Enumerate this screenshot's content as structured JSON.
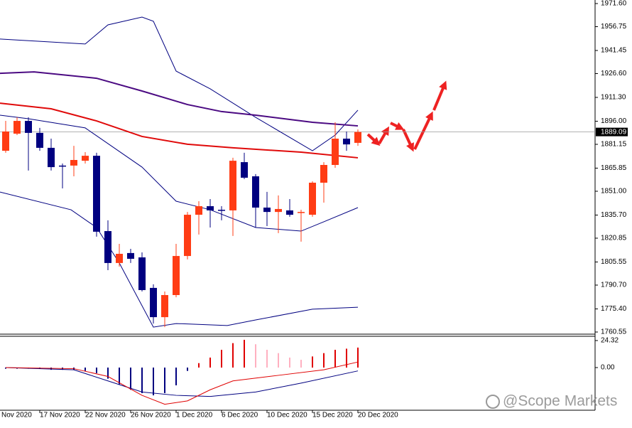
{
  "chart_data": {
    "type": "candlestick",
    "categories": [
      null,
      null,
      null,
      "17 Nov 2020",
      null,
      null,
      null,
      "22 Nov 2020",
      null,
      null,
      null,
      "26 Nov 2020",
      null,
      null,
      null,
      "1 Dec 2020",
      null,
      null,
      null,
      "6 Dec 2020",
      null,
      null,
      null,
      "10 Dec 2020",
      null,
      null,
      null,
      "15 Dec 2020",
      null,
      null,
      null,
      "20 Dec 2020"
    ],
    "clipped_x_label": "Nov 2020",
    "open": [
      1877.0,
      1888.0,
      1896.2,
      1888.5,
      1878.9,
      1867.5,
      1867.5,
      1870.6,
      1873.8,
      1825.4,
      1804.9,
      1811.3,
      1808.5,
      1788.9,
      1770.1,
      1784.3,
      1809.4,
      1835.9,
      1841.4,
      1839.1,
      1838.7,
      1869.7,
      1860.6,
      1840.5,
      1837.7,
      1838.7,
      1837.7,
      1835.9,
      1856.5,
      1867.9,
      1884.8,
      1882.1
    ],
    "high": [
      1896.2,
      1898.5,
      1898.5,
      1891.7,
      1884.8,
      1868.8,
      1880.2,
      1876.1,
      1875.7,
      1832.3,
      1817.2,
      1814.0,
      1811.7,
      1791.2,
      1786.6,
      1817.2,
      1837.7,
      1844.6,
      1846.0,
      1841.4,
      1872.5,
      1875.7,
      1862.0,
      1850.6,
      1848.3,
      1846.0,
      1839.1,
      1857.4,
      1869.7,
      1895.3,
      1889.4,
      1890.7
    ],
    "low": [
      1875.7,
      1887.1,
      1864.3,
      1877.0,
      1864.3,
      1852.8,
      1860.6,
      1868.8,
      1821.8,
      1800.3,
      1802.6,
      1804.9,
      1786.6,
      1766.0,
      1763.7,
      1782.9,
      1807.2,
      1823.2,
      1827.7,
      1832.3,
      1822.3,
      1858.8,
      1827.7,
      1828.6,
      1824.1,
      1834.6,
      1818.6,
      1834.6,
      1843.7,
      1866.1,
      1877.0,
      1880.2
    ],
    "close": [
      1889.4,
      1896.2,
      1888.5,
      1878.9,
      1866.5,
      1867.0,
      1871.1,
      1873.8,
      1825.0,
      1804.9,
      1810.8,
      1807.6,
      1787.5,
      1770.1,
      1784.3,
      1809.4,
      1835.9,
      1841.4,
      1838.7,
      1838.7,
      1870.6,
      1859.7,
      1840.5,
      1837.7,
      1839.6,
      1835.9,
      1837.7,
      1856.5,
      1867.9,
      1884.8,
      1881.1,
      1889.09
    ],
    "up_color": "#ff3c14",
    "down_color": "#000080",
    "ylim": [
      1760.55,
      1971.6
    ],
    "yticks": [
      {
        "value": 1971.6,
        "label": "1971.60"
      },
      1956.75,
      1941.45,
      {
        "value": 1926.6,
        "label": "1926.60"
      },
      {
        "value": 1911.3,
        "label": "1911.30"
      },
      {
        "value": 1896,
        "label": "1896.00"
      },
      1881.15,
      1865.85,
      {
        "value": 1851,
        "label": "1851.00"
      },
      {
        "value": 1835.7,
        "label": "1835.70"
      },
      1820.85,
      1805.55,
      {
        "value": 1790.7,
        "label": "1790.70"
      },
      {
        "value": 1775.4,
        "label": "1775.40"
      },
      1760.55
    ],
    "current_price": 1889.09,
    "lines": [
      {
        "color": "#000080",
        "width": 1,
        "x": [
          -0.5,
          7,
          9,
          12,
          13,
          15,
          18,
          22,
          27,
          29,
          31
        ],
        "values": [
          1948.8,
          1945.6,
          1957.9,
          1962.9,
          1960.2,
          1928.2,
          1916.8,
          1898.5,
          1877.0,
          1887.1,
          1903.1
        ]
      },
      {
        "color": "#000080",
        "width": 1,
        "x": [
          -0.5,
          2,
          7,
          12,
          15,
          18,
          22,
          26,
          28,
          31
        ],
        "values": [
          1899.9,
          1897.6,
          1891.7,
          1866.5,
          1844.6,
          1839.1,
          1827.7,
          1825.4,
          1831.4,
          1840.5
        ]
      },
      {
        "color": "#000080",
        "width": 1,
        "x": [
          -0.5,
          5.75,
          8,
          10,
          13,
          15,
          19.5,
          22,
          27,
          31
        ],
        "values": [
          1850.5,
          1839.1,
          1827.7,
          1804.9,
          1763.7,
          1766.0,
          1764.7,
          1768.3,
          1775.2,
          1776.5
        ]
      },
      {
        "color": "#4b0a82",
        "width": 2,
        "x": [
          -0.5,
          2.5,
          8,
          12,
          16,
          19,
          22,
          27,
          31
        ],
        "values": [
          1926.8,
          1927.7,
          1923.6,
          1915.4,
          1906.7,
          1902.2,
          1899.9,
          1895.3,
          1893.0
        ]
      },
      {
        "color": "#e00a0a",
        "width": 2,
        "x": [
          -0.5,
          4,
          8,
          12,
          16,
          20,
          26,
          31
        ],
        "values": [
          1907.6,
          1904.0,
          1896.2,
          1886.2,
          1881.2,
          1878.9,
          1876.1,
          1872.5
        ]
      }
    ],
    "macd": {
      "histogram": [
        -1,
        -1,
        -1,
        -1,
        -2,
        -2,
        -2,
        -3,
        -5,
        -10,
        -15,
        -20,
        -23,
        -25,
        -23,
        -16,
        -3,
        4,
        9,
        16,
        22,
        25,
        21,
        16,
        13,
        9,
        7,
        10,
        13,
        16,
        17,
        18
      ],
      "hist_colors": {
        "rising": "#e00000",
        "falling": "#ffb0c0",
        "negative": "#000080"
      },
      "lines": [
        {
          "color": "#000080",
          "x": [
            0,
            6,
            9,
            12,
            15,
            18,
            22,
            26,
            31
          ],
          "values": [
            0,
            -2,
            -12,
            -22,
            -25,
            -26,
            -22,
            -14,
            -3
          ]
        },
        {
          "color": "#e00000",
          "x": [
            0,
            6,
            9,
            12,
            14,
            16,
            18,
            20,
            24,
            28,
            31
          ],
          "values": [
            0,
            -1,
            -8,
            -25,
            -33,
            -30,
            -20,
            -12,
            -7,
            -2,
            5
          ]
        }
      ],
      "ylim": [
        -37.12,
        28.16
      ],
      "yticks": [
        {
          "value": 0,
          "label": "0.00"
        },
        24.32
      ]
    },
    "watermark": "@Scope Markets"
  }
}
